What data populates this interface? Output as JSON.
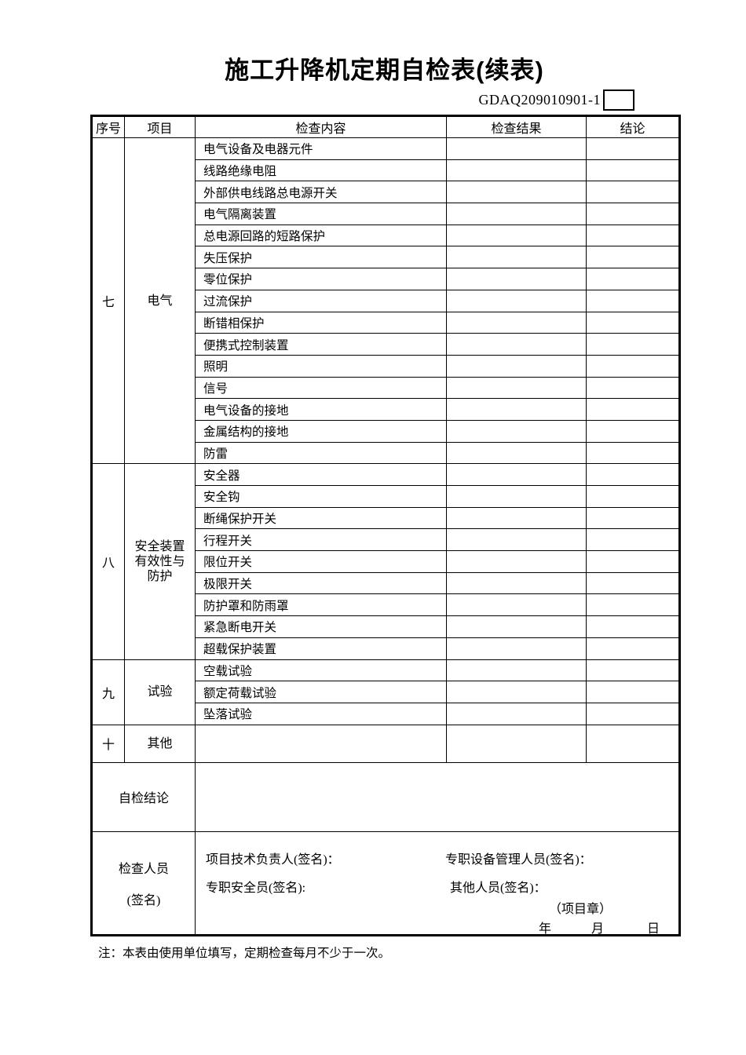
{
  "page": {
    "title": "施工升降机定期自检表(续表)",
    "code": "GDAQ209010901-1",
    "note": "注：本表由使用单位填写，定期检查每月不少于一次。"
  },
  "table": {
    "headers": [
      "序号",
      "项目",
      "检查内容",
      "检查结果",
      "结论"
    ],
    "sections": [
      {
        "index": "七",
        "item": "电气",
        "contents": [
          "电气设备及电器元件",
          "线路绝缘电阻",
          "外部供电线路总电源开关",
          "电气隔离装置",
          "总电源回路的短路保护",
          "失压保护",
          "零位保护",
          "过流保护",
          "断错相保护",
          "便携式控制装置",
          "照明",
          "信号",
          "电气设备的接地",
          "金属结构的接地",
          "防雷"
        ]
      },
      {
        "index": "八",
        "item": "安全装置\n有效性与\n防护",
        "contents": [
          "安全器",
          "安全钩",
          "断绳保护开关",
          "行程开关",
          "限位开关",
          "极限开关",
          "防护罩和防雨罩",
          "紧急断电开关",
          "超载保护装置"
        ]
      },
      {
        "index": "九",
        "item": "试验",
        "contents": [
          "空载试验",
          "额定荷载试验",
          "坠落试验"
        ]
      },
      {
        "index": "十",
        "item": "其他",
        "contents": [
          ""
        ]
      }
    ],
    "conclusion_label": "自检结论",
    "inspector_label_line1": "检查人员",
    "inspector_label_line2": "(签名)",
    "signatures": {
      "tech_lead": "项目技术负责人(签名)：",
      "equipment_manager": "专职设备管理人员(签名)：",
      "safety_officer": "专职安全员(签名):",
      "others": "其他人员(签名)：",
      "project_seal": "（项目章）",
      "date_year": "年",
      "date_month": "月",
      "date_day": "日"
    }
  }
}
